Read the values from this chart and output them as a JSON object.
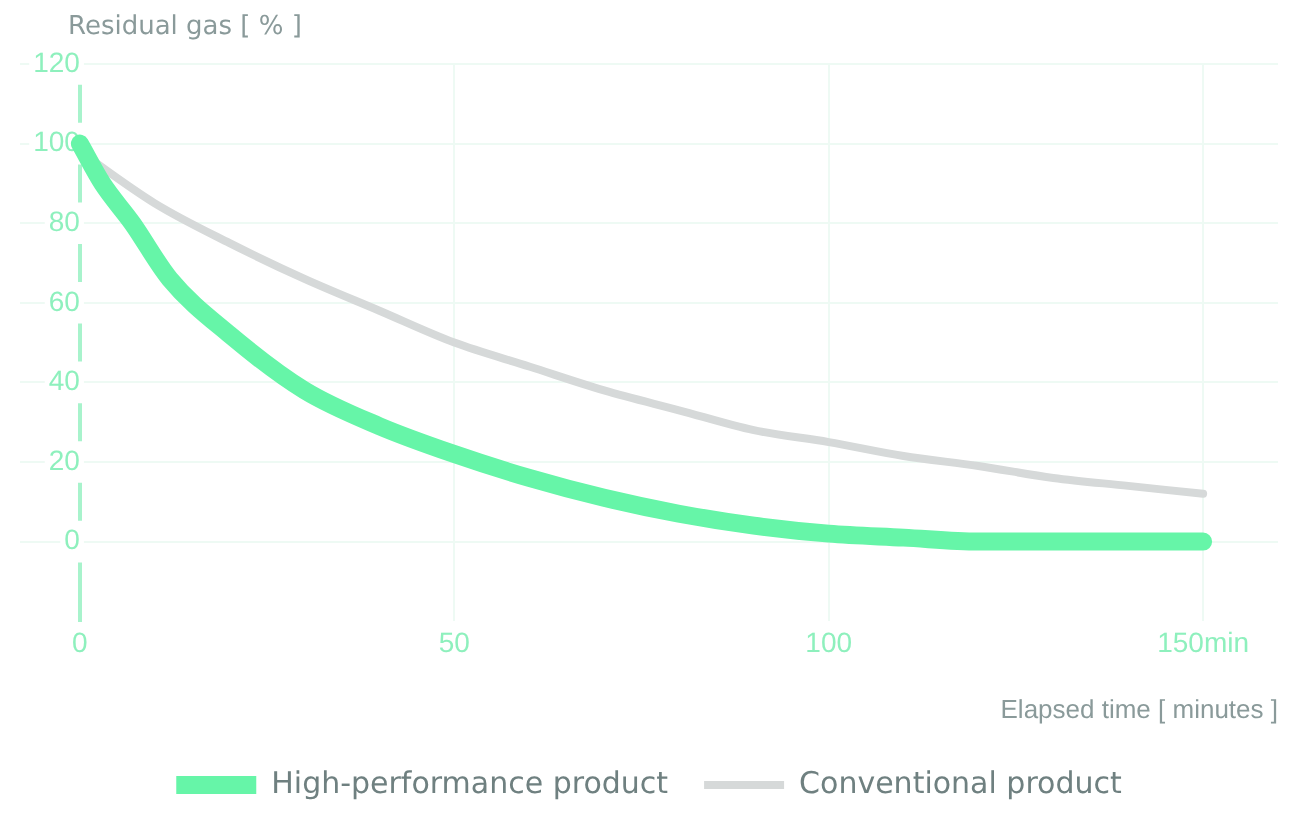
{
  "chart_data": {
    "type": "line",
    "ylabel": "Residual gas [ % ]",
    "xlabel": "Elapsed time [ minutes ]",
    "xlim": [
      -8,
      160
    ],
    "xticks": [
      0,
      50,
      100,
      {
        "value": 150,
        "label": "150min"
      }
    ],
    "ylim": [
      -20,
      120
    ],
    "yticks": [
      0,
      20,
      40,
      60,
      80,
      100,
      120
    ],
    "grid": true,
    "legend": "bottom",
    "marker": "none",
    "line_style": "solid",
    "series": [
      {
        "name": "High-performance product",
        "color": "#66f5a8",
        "x": [
          0,
          3,
          7,
          12,
          20,
          30,
          40,
          50,
          60,
          70,
          80,
          90,
          100,
          110,
          120,
          130,
          140,
          150
        ],
        "values": [
          100,
          90,
          80,
          66,
          52,
          38,
          29,
          22,
          16,
          11,
          7,
          4,
          2,
          1,
          0,
          0,
          0,
          0
        ]
      },
      {
        "name": "Conventional product",
        "color": "#d6d9d9",
        "x": [
          0,
          10,
          20,
          30,
          40,
          50,
          60,
          70,
          80,
          90,
          100,
          110,
          120,
          130,
          140,
          150
        ],
        "values": [
          98,
          85,
          75,
          66,
          58,
          50,
          44,
          38,
          33,
          28,
          25,
          21.5,
          19,
          16,
          14,
          12
        ]
      }
    ]
  }
}
